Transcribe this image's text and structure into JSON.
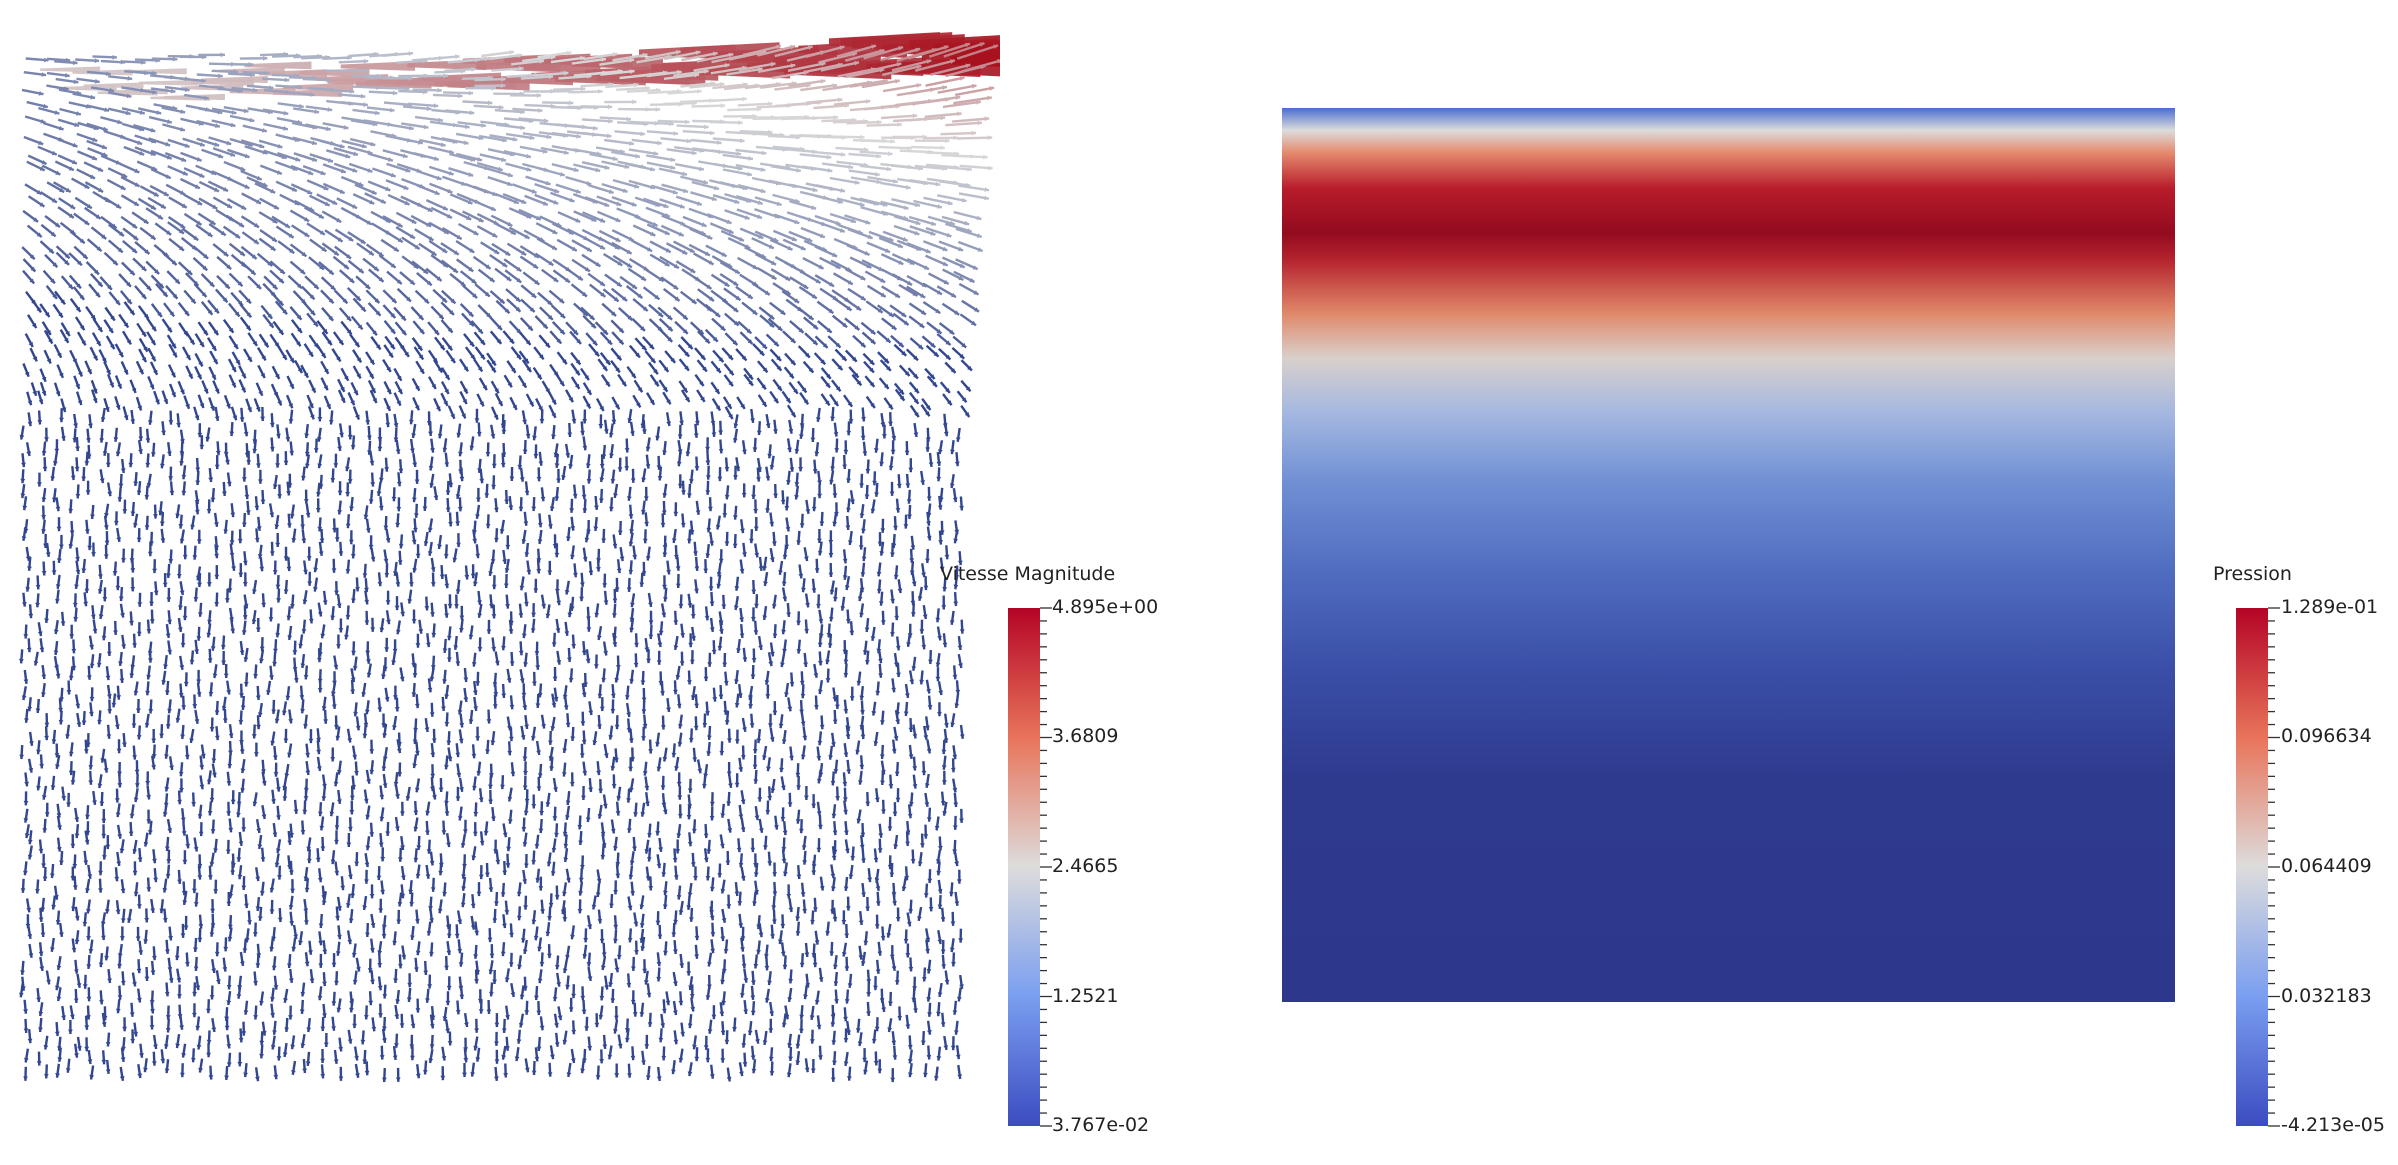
{
  "left_view": {
    "colorbar_title": "Vitesse Magnitude",
    "colorbar_labels": [
      "4.895e+00",
      "3.6809",
      "2.4665",
      "1.2521",
      "3.767e-02"
    ],
    "range": [
      0.03767,
      4.895
    ]
  },
  "right_view": {
    "colorbar_title": "Pression",
    "colorbar_labels": [
      "1.289e-01",
      "0.096634",
      "0.064409",
      "0.032183",
      "-4.213e-05"
    ],
    "range": [
      -4.213e-05,
      0.1289
    ]
  },
  "colormap": {
    "name": "cool-to-warm",
    "low": "#3b4cc0",
    "mid": "#dddcdc",
    "high": "#b40426",
    "glyph_color": "#33478f"
  }
}
